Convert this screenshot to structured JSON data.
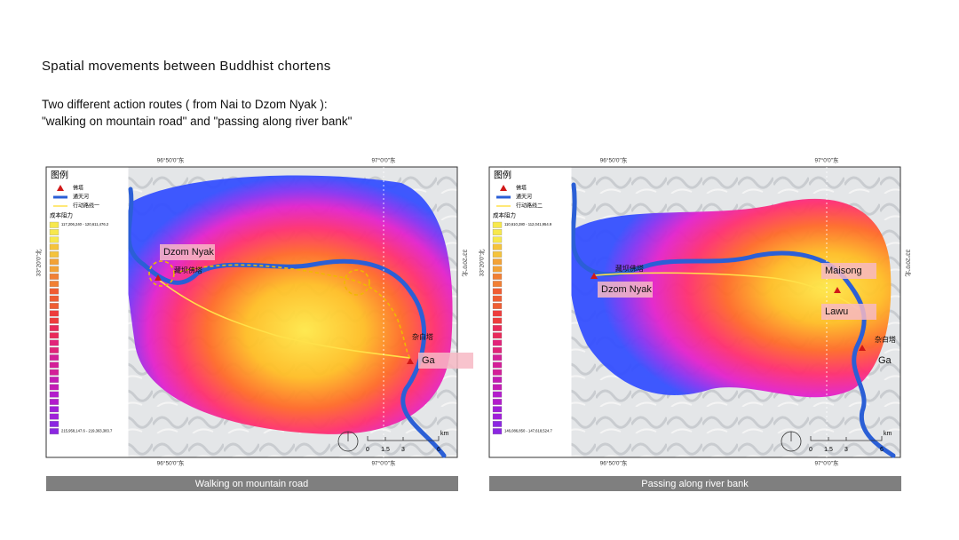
{
  "title": "Spatial movements between Buddhist chortens",
  "subtitle_lines": [
    "Two different action routes ( from Nai to Dzom Nyak ):",
    "\"walking on mountain road\" and \"passing along river bank\""
  ],
  "maps": [
    {
      "legend": {
        "title": "图例",
        "items": [
          "佛塔",
          "通天河",
          "行动路线一"
        ],
        "cost_title": "成本阻力",
        "ranges": [
          "117,206,240 - 120,611,476.2",
          "215,958,147.6 - 219,363,383.7"
        ]
      },
      "axis_labels": {
        "top": [
          "96°50'0\"东",
          "97°0'0\"东"
        ],
        "bottom": [
          "96°50'0\"东",
          "97°0'0\"东"
        ],
        "left": "33°20'0\"北",
        "right": "33°20'0\"北"
      },
      "places": [
        "Dzom Nyak",
        "藏坝佛塔",
        "杂白塔",
        "Ga"
      ],
      "scale": {
        "ticks": [
          "0",
          "1.5",
          "3",
          "6"
        ],
        "unit": "km"
      },
      "caption": "Walking on mountain road"
    },
    {
      "legend": {
        "title": "图例",
        "items": [
          "佛塔",
          "通天河",
          "行动路线二"
        ],
        "cost_title": "成本阻力",
        "ranges": [
          "110,610,280 - 112,041,954.9",
          "146,086,850 - 147,618,524.7"
        ]
      },
      "axis_labels": {
        "top": [
          "96°50'0\"东",
          "97°0'0\"东"
        ],
        "bottom": [
          "96°50'0\"东",
          "97°0'0\"东"
        ],
        "left": "33°20'0\"北",
        "right": "33°20'0\"北"
      },
      "places": [
        "藏坝佛塔",
        "Dzom Nyak",
        "Maisong",
        "Lawu",
        "杂白塔",
        "Ga"
      ],
      "scale": {
        "ticks": [
          "0",
          "1.5",
          "3",
          "6"
        ],
        "unit": "km"
      },
      "caption": "Passing along river bank"
    }
  ]
}
